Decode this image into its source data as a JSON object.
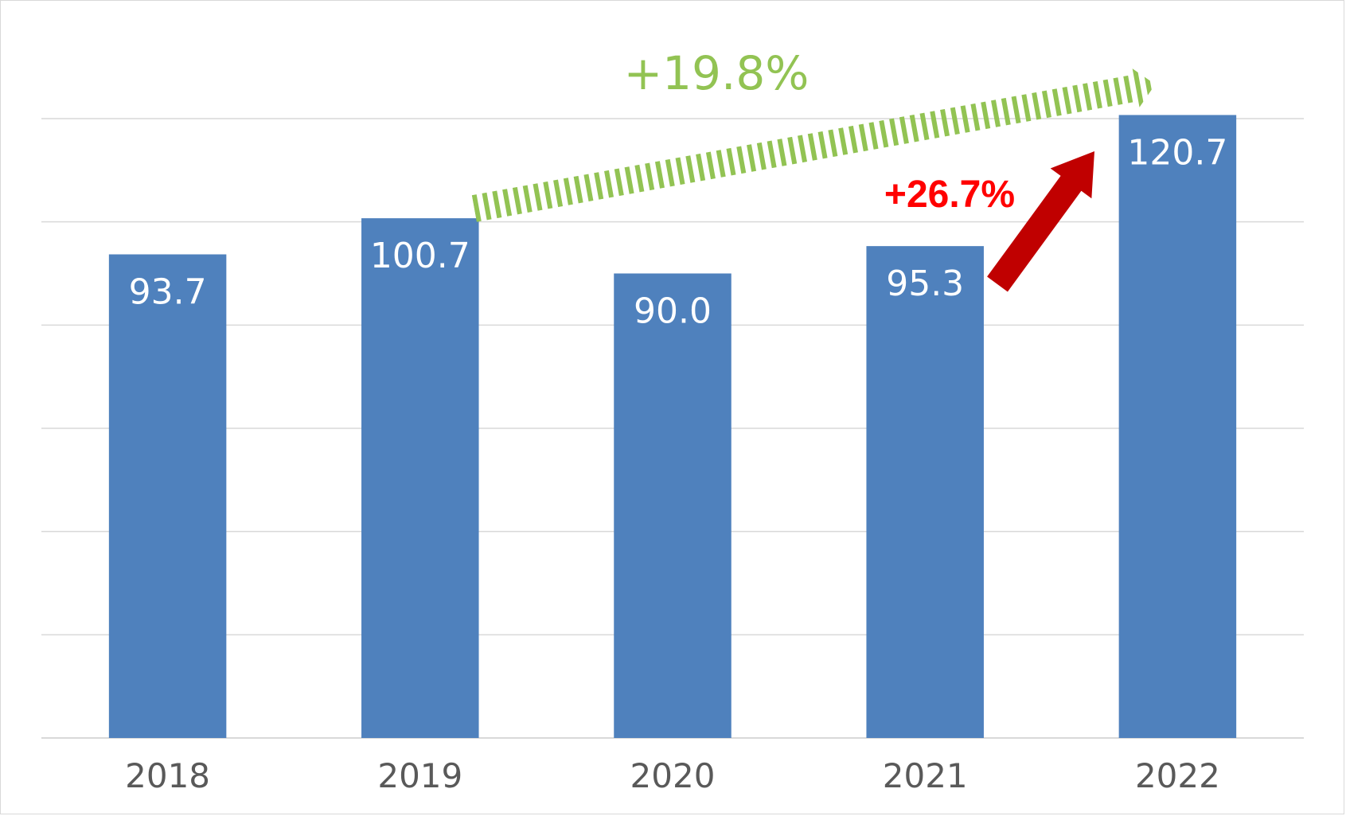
{
  "chart_data": {
    "type": "bar",
    "categories": [
      "2018",
      "2019",
      "2020",
      "2021",
      "2022"
    ],
    "values": [
      93.7,
      100.7,
      90.0,
      95.3,
      120.7
    ],
    "value_labels": [
      "93.7",
      "100.7",
      "90.0",
      "95.3",
      "120.7"
    ],
    "title": "",
    "xlabel": "",
    "ylabel": "",
    "ylim": [
      0,
      120
    ],
    "grid": true,
    "legend": "none",
    "annotations": [
      {
        "text": "+19.8%",
        "from_category": "2019",
        "to_category": "2022",
        "style": "striped-arrow",
        "color": "#92c353"
      },
      {
        "text": "+26.7%",
        "from_category": "2021",
        "to_category": "2022",
        "style": "solid-arrow",
        "color": "#c00000",
        "text_color": "#ff0000"
      }
    ]
  },
  "colors": {
    "bar": "#4f81bd",
    "grid": "#d9d9d9",
    "tick_text": "#595959",
    "bar_label_text": "#ffffff"
  }
}
